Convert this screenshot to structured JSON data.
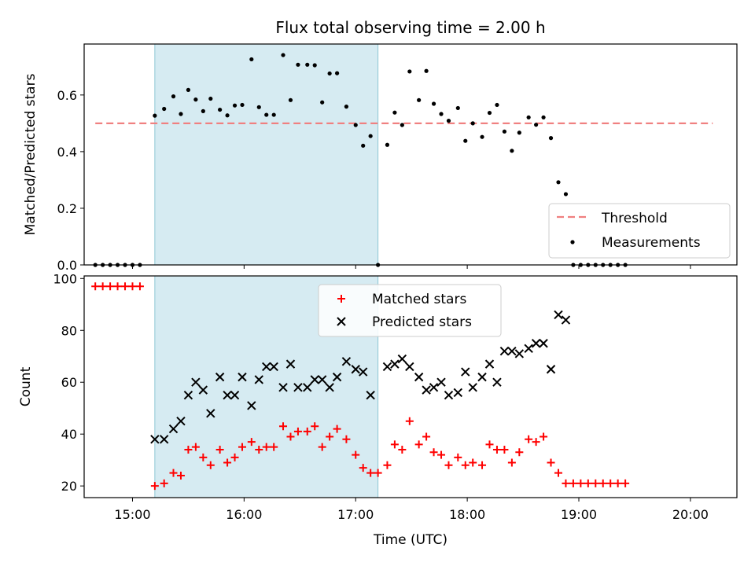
{
  "chart_data": [
    {
      "type": "scatter",
      "title": "Flux total observing time = 2.00 h",
      "xlabel": "",
      "ylabel": "Matched/Predicted stars",
      "xlim": [
        "14:34",
        "20:25"
      ],
      "ylim": [
        0.0,
        0.78
      ],
      "yticks": [
        "0.0",
        "0.2",
        "0.4",
        "0.6"
      ],
      "xticks": [
        "15:00",
        "16:00",
        "17:00",
        "18:00",
        "19:00",
        "20:00"
      ],
      "xtick_labels_shown": false,
      "grid": false,
      "legend_placement": "lower-right",
      "shaded_interval": {
        "start": "15:12",
        "end": "17:12",
        "color": "#add8e6"
      },
      "threshold": {
        "name": "Threshold",
        "value": 0.5,
        "start": "14:40",
        "end": "20:12",
        "color": "#f08080",
        "style": "dashed"
      },
      "series": [
        {
          "name": "Measurements",
          "marker": "dot",
          "color": "#000000",
          "points": [
            [
              "14:40",
              0
            ],
            [
              "14:44",
              0
            ],
            [
              "14:48",
              0
            ],
            [
              "14:52",
              0
            ],
            [
              "14:56",
              0
            ],
            [
              "15:00",
              0
            ],
            [
              "15:04",
              0
            ],
            [
              "15:12",
              0.527
            ],
            [
              "15:17",
              0.551
            ],
            [
              "15:22",
              0.595
            ],
            [
              "15:26",
              0.533
            ],
            [
              "15:30",
              0.618
            ],
            [
              "15:34",
              0.584
            ],
            [
              "15:38",
              0.543
            ],
            [
              "15:42",
              0.587
            ],
            [
              "15:47",
              0.548
            ],
            [
              "15:51",
              0.528
            ],
            [
              "15:55",
              0.563
            ],
            [
              "15:59",
              0.565
            ],
            [
              "16:04",
              0.726
            ],
            [
              "16:08",
              0.557
            ],
            [
              "16:12",
              0.53
            ],
            [
              "16:16",
              0.53
            ],
            [
              "16:21",
              0.741
            ],
            [
              "16:25",
              0.582
            ],
            [
              "16:29",
              0.707
            ],
            [
              "16:34",
              0.707
            ],
            [
              "16:38",
              0.705
            ],
            [
              "16:42",
              0.574
            ],
            [
              "16:46",
              0.676
            ],
            [
              "16:50",
              0.677
            ],
            [
              "16:55",
              0.559
            ],
            [
              "17:00",
              0.494
            ],
            [
              "17:04",
              0.421
            ],
            [
              "17:08",
              0.455
            ],
            [
              "17:12",
              0.0
            ],
            [
              "17:17",
              0.424
            ],
            [
              "17:21",
              0.538
            ],
            [
              "17:25",
              0.494
            ],
            [
              "17:29",
              0.683
            ],
            [
              "17:34",
              0.582
            ],
            [
              "17:38",
              0.685
            ],
            [
              "17:42",
              0.569
            ],
            [
              "17:46",
              0.533
            ],
            [
              "17:50",
              0.509
            ],
            [
              "17:55",
              0.554
            ],
            [
              "17:59",
              0.438
            ],
            [
              "18:03",
              0.5
            ],
            [
              "18:08",
              0.452
            ],
            [
              "18:12",
              0.537
            ],
            [
              "18:16",
              0.565
            ],
            [
              "18:20",
              0.471
            ],
            [
              "18:24",
              0.403
            ],
            [
              "18:28",
              0.467
            ],
            [
              "18:33",
              0.521
            ],
            [
              "18:37",
              0.495
            ],
            [
              "18:41",
              0.521
            ],
            [
              "18:45",
              0.448
            ],
            [
              "18:49",
              0.292
            ],
            [
              "18:53",
              0.25
            ],
            [
              "18:57",
              0
            ],
            [
              "19:01",
              0
            ],
            [
              "19:05",
              0
            ],
            [
              "19:09",
              0
            ],
            [
              "19:13",
              0
            ],
            [
              "19:17",
              0
            ],
            [
              "19:21",
              0
            ],
            [
              "19:25",
              0
            ]
          ]
        }
      ]
    },
    {
      "type": "scatter",
      "title": "",
      "xlabel": "Time (UTC)",
      "ylabel": "Count",
      "xlim": [
        "14:34",
        "20:25"
      ],
      "ylim": [
        15.5,
        101
      ],
      "yticks": [
        "20",
        "40",
        "60",
        "80",
        "100"
      ],
      "xticks": [
        "15:00",
        "16:00",
        "17:00",
        "18:00",
        "19:00",
        "20:00"
      ],
      "grid": false,
      "legend_placement": "upper-center",
      "shaded_interval": {
        "start": "15:12",
        "end": "17:12",
        "color": "#add8e6"
      },
      "series": [
        {
          "name": "Matched stars",
          "marker": "plus",
          "color": "#ff0000",
          "points": [
            [
              "14:40",
              97
            ],
            [
              "14:44",
              97
            ],
            [
              "14:48",
              97
            ],
            [
              "14:52",
              97
            ],
            [
              "14:56",
              97
            ],
            [
              "15:00",
              97
            ],
            [
              "15:04",
              97
            ],
            [
              "15:12",
              20
            ],
            [
              "15:17",
              21
            ],
            [
              "15:22",
              25
            ],
            [
              "15:26",
              24
            ],
            [
              "15:30",
              34
            ],
            [
              "15:34",
              35
            ],
            [
              "15:38",
              31
            ],
            [
              "15:42",
              28
            ],
            [
              "15:47",
              34
            ],
            [
              "15:51",
              29
            ],
            [
              "15:55",
              31
            ],
            [
              "15:59",
              35
            ],
            [
              "16:04",
              37
            ],
            [
              "16:08",
              34
            ],
            [
              "16:12",
              35
            ],
            [
              "16:16",
              35
            ],
            [
              "16:21",
              43
            ],
            [
              "16:25",
              39
            ],
            [
              "16:29",
              41
            ],
            [
              "16:34",
              41
            ],
            [
              "16:38",
              43
            ],
            [
              "16:42",
              35
            ],
            [
              "16:46",
              39
            ],
            [
              "16:50",
              42
            ],
            [
              "16:55",
              38
            ],
            [
              "17:00",
              32
            ],
            [
              "17:04",
              27
            ],
            [
              "17:08",
              25
            ],
            [
              "17:12",
              25
            ],
            [
              "17:17",
              28
            ],
            [
              "17:21",
              36
            ],
            [
              "17:25",
              34
            ],
            [
              "17:29",
              45
            ],
            [
              "17:34",
              36
            ],
            [
              "17:38",
              39
            ],
            [
              "17:42",
              33
            ],
            [
              "17:46",
              32
            ],
            [
              "17:50",
              28
            ],
            [
              "17:55",
              31
            ],
            [
              "17:59",
              28
            ],
            [
              "18:03",
              29
            ],
            [
              "18:08",
              28
            ],
            [
              "18:12",
              36
            ],
            [
              "18:16",
              34
            ],
            [
              "18:20",
              34
            ],
            [
              "18:24",
              29
            ],
            [
              "18:28",
              33
            ],
            [
              "18:33",
              38
            ],
            [
              "18:37",
              37
            ],
            [
              "18:41",
              39
            ],
            [
              "18:45",
              29
            ],
            [
              "18:49",
              25
            ],
            [
              "18:53",
              21
            ],
            [
              "18:57",
              21
            ],
            [
              "19:01",
              21
            ],
            [
              "19:05",
              21
            ],
            [
              "19:09",
              21
            ],
            [
              "19:13",
              21
            ],
            [
              "19:17",
              21
            ],
            [
              "19:21",
              21
            ],
            [
              "19:25",
              21
            ]
          ]
        },
        {
          "name": "Predicted stars",
          "marker": "x",
          "color": "#000000",
          "points": [
            [
              "15:12",
              38
            ],
            [
              "15:17",
              38
            ],
            [
              "15:22",
              42
            ],
            [
              "15:26",
              45
            ],
            [
              "15:30",
              55
            ],
            [
              "15:34",
              60
            ],
            [
              "15:38",
              57
            ],
            [
              "15:42",
              48
            ],
            [
              "15:47",
              62
            ],
            [
              "15:51",
              55
            ],
            [
              "15:55",
              55
            ],
            [
              "15:59",
              62
            ],
            [
              "16:04",
              51
            ],
            [
              "16:08",
              61
            ],
            [
              "16:12",
              66
            ],
            [
              "16:16",
              66
            ],
            [
              "16:21",
              58
            ],
            [
              "16:25",
              67
            ],
            [
              "16:29",
              58
            ],
            [
              "16:34",
              58
            ],
            [
              "16:38",
              61
            ],
            [
              "16:42",
              61
            ],
            [
              "16:46",
              58
            ],
            [
              "16:50",
              62
            ],
            [
              "16:55",
              68
            ],
            [
              "17:00",
              65
            ],
            [
              "17:04",
              64
            ],
            [
              "17:08",
              55
            ],
            [
              "17:17",
              66
            ],
            [
              "17:21",
              67
            ],
            [
              "17:25",
              69
            ],
            [
              "17:29",
              66
            ],
            [
              "17:34",
              62
            ],
            [
              "17:38",
              57
            ],
            [
              "17:42",
              58
            ],
            [
              "17:46",
              60
            ],
            [
              "17:50",
              55
            ],
            [
              "17:55",
              56
            ],
            [
              "17:59",
              64
            ],
            [
              "18:03",
              58
            ],
            [
              "18:08",
              62
            ],
            [
              "18:12",
              67
            ],
            [
              "18:16",
              60
            ],
            [
              "18:20",
              72
            ],
            [
              "18:24",
              72
            ],
            [
              "18:28",
              71
            ],
            [
              "18:33",
              73
            ],
            [
              "18:37",
              75
            ],
            [
              "18:41",
              75
            ],
            [
              "18:45",
              65
            ],
            [
              "18:49",
              86
            ],
            [
              "18:53",
              84
            ]
          ]
        }
      ]
    }
  ]
}
